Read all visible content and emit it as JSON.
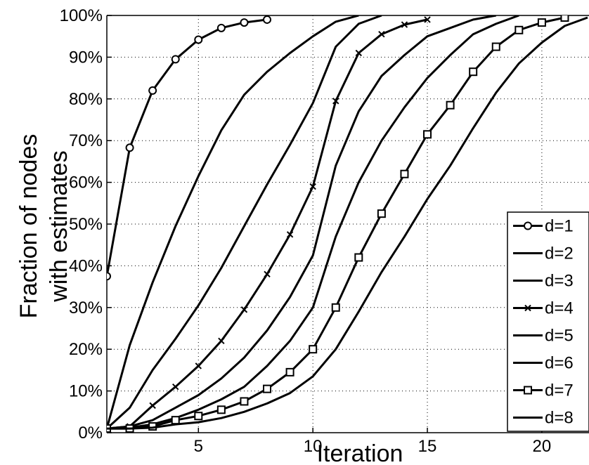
{
  "chart_data": {
    "type": "line",
    "xlabel": "Iteration",
    "ylabel": [
      "Fraction of nodes",
      "with estimates"
    ],
    "xlim": [
      1,
      22
    ],
    "ylim": [
      0,
      100
    ],
    "xticks": [
      5,
      10,
      15,
      20
    ],
    "yticks": [
      0,
      10,
      20,
      30,
      40,
      50,
      60,
      70,
      80,
      90,
      100
    ],
    "ytick_format": "{v}%",
    "grid": true,
    "legend_position": "bottom-right",
    "series": [
      {
        "name": "d=1",
        "marker": "circle",
        "x": [
          1,
          2,
          3,
          4,
          5,
          6,
          7,
          8
        ],
        "y": [
          37.5,
          68.3,
          82,
          89.5,
          94.2,
          97,
          98.3,
          99
        ]
      },
      {
        "name": "d=2",
        "marker": "none",
        "x": [
          1,
          2,
          3,
          4,
          5,
          6,
          7,
          8,
          9,
          10,
          11,
          12
        ],
        "y": [
          1,
          21,
          36,
          49.5,
          61.5,
          72.5,
          81,
          86.5,
          91,
          95,
          98.5,
          100
        ]
      },
      {
        "name": "d=3",
        "marker": "none",
        "x": [
          1,
          2,
          3,
          4,
          5,
          6,
          7,
          8,
          9,
          10,
          11,
          12,
          13
        ],
        "y": [
          1,
          6,
          15,
          22.5,
          30.5,
          39.5,
          49.5,
          59.5,
          69,
          79,
          92.5,
          98,
          100
        ]
      },
      {
        "name": "d=4",
        "marker": "x",
        "x": [
          1,
          2,
          3,
          4,
          5,
          6,
          7,
          8,
          9,
          10,
          11,
          12,
          13,
          14,
          15
        ],
        "y": [
          1,
          1.5,
          6.5,
          11,
          16,
          22,
          29.5,
          38,
          47.5,
          59,
          79.5,
          91,
          95.5,
          97.8,
          99
        ]
      },
      {
        "name": "d=5",
        "marker": "none",
        "x": [
          1,
          2,
          3,
          4,
          5,
          6,
          7,
          8,
          9,
          10,
          11,
          12,
          13,
          14,
          15,
          16,
          17,
          18
        ],
        "y": [
          1,
          1.5,
          3,
          6,
          9,
          13,
          18,
          24.5,
          32.5,
          42.5,
          64,
          77,
          85.5,
          90.5,
          95,
          97,
          99,
          100
        ]
      },
      {
        "name": "d=6",
        "marker": "none",
        "x": [
          1,
          2,
          3,
          4,
          5,
          6,
          7,
          8,
          9,
          10,
          11,
          12,
          13,
          14,
          15,
          16,
          17,
          18,
          19
        ],
        "y": [
          1,
          1.2,
          2,
          3.5,
          5.5,
          8,
          11,
          16,
          22,
          30,
          47,
          60,
          70,
          78,
          85,
          90.5,
          95.5,
          98,
          100
        ]
      },
      {
        "name": "d=7",
        "marker": "square",
        "x": [
          1,
          2,
          3,
          4,
          5,
          6,
          7,
          8,
          9,
          10,
          11,
          12,
          13,
          14,
          15,
          16,
          17,
          18,
          19,
          20,
          21
        ],
        "y": [
          1,
          1,
          1.5,
          3,
          4,
          5.5,
          7.5,
          10.5,
          14.5,
          20,
          30,
          42,
          52.5,
          62,
          71.5,
          78.5,
          86.5,
          92.5,
          96.5,
          98.3,
          99.5
        ]
      },
      {
        "name": "d=8",
        "marker": "none",
        "x": [
          1,
          2,
          3,
          4,
          5,
          6,
          7,
          8,
          9,
          10,
          11,
          12,
          13,
          14,
          15,
          16,
          17,
          18,
          19,
          20,
          21,
          22
        ],
        "y": [
          1,
          1,
          1.2,
          2,
          2.5,
          3.5,
          5,
          7,
          9.5,
          13.5,
          20,
          29,
          38.5,
          47,
          56,
          64,
          73,
          81.5,
          88.5,
          93.5,
          97.5,
          99.5
        ]
      }
    ]
  }
}
